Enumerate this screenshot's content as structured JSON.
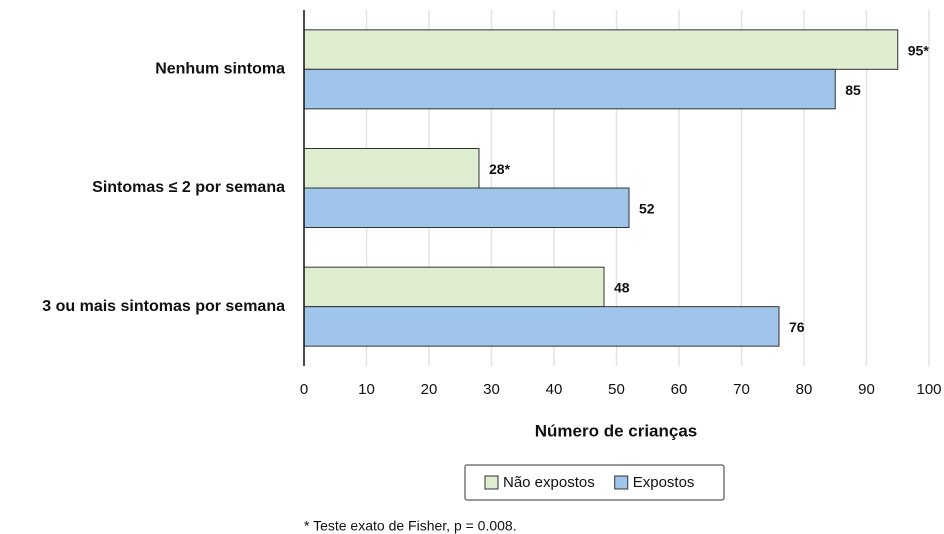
{
  "chart_data": {
    "type": "barh",
    "categories": [
      "Nenhum sintoma",
      "Sintomas ≤ 2 por semana",
      "3 ou mais sintomas por semana"
    ],
    "series": [
      {
        "name": "Não expostos",
        "color": "#deecd0",
        "values": [
          95,
          28,
          48
        ],
        "value_labels": [
          "95*",
          "28*",
          "48"
        ]
      },
      {
        "name": "Expostos",
        "color": "#9fc6ea",
        "values": [
          85,
          52,
          76
        ]
      }
    ],
    "xlabel": "Número de crianças",
    "xlim": [
      0,
      100
    ],
    "xticks": [
      0,
      10,
      20,
      30,
      40,
      50,
      60,
      70,
      80,
      90,
      100
    ],
    "grid": true,
    "footnote": "* Teste exato de Fisher, p = 0.008."
  }
}
